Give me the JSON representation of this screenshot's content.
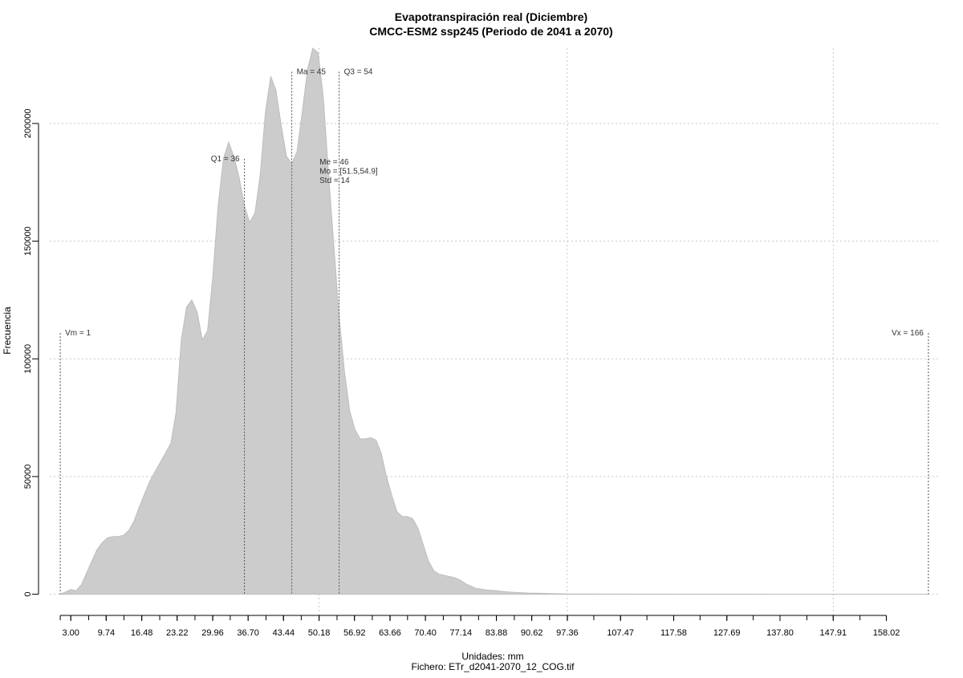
{
  "chart_data": {
    "type": "area",
    "title": "Evapotranspiración real (Diciembre)",
    "subtitle": "CMCC-ESM2 ssp245 (Periodo de 2041 a 2070)",
    "xlabel": "Unidades: mm",
    "file_label": "Fichero: ETr_d2041-2070_12_COG.tif",
    "ylabel": "Frecuencia",
    "xlim": [
      -1,
      168
    ],
    "ylim": [
      -9000,
      232000
    ],
    "grid": true,
    "fill_color": "#cccccc",
    "x_ticks": [
      3.0,
      9.74,
      16.48,
      23.22,
      29.96,
      36.7,
      43.44,
      50.18,
      56.92,
      63.66,
      70.4,
      77.14,
      83.88,
      90.62,
      97.36,
      107.47,
      117.58,
      127.69,
      137.8,
      147.91,
      158.02
    ],
    "x_tick_labels": [
      "3.00",
      "9.74",
      "16.48",
      "23.22",
      "29.96",
      "36.70",
      "43.44",
      "50.18",
      "56.92",
      "63.66",
      "70.40",
      "77.14",
      "83.88",
      "90.62",
      "97.36",
      "107.47",
      "117.58",
      "127.69",
      "137.80",
      "147.91",
      "158.02"
    ],
    "x_minor_ticks": [
      1,
      3,
      6.4,
      9.7,
      13.1,
      16.5,
      19.9,
      23.2,
      26.6,
      30.0,
      33.3,
      36.7,
      40.1,
      43.4,
      46.8,
      50.2,
      53.6,
      56.9,
      60.3,
      63.7,
      67.0,
      70.4,
      73.8,
      77.1,
      80.5,
      83.9,
      87.3,
      90.6,
      94.0,
      97.4,
      102.4,
      107.5,
      112.5,
      117.6,
      122.6,
      127.7,
      132.7,
      137.8,
      142.9,
      147.9,
      153.0,
      158.0
    ],
    "y_ticks": [
      0,
      50000,
      100000,
      150000,
      200000
    ],
    "y_tick_labels": [
      "0",
      "50000",
      "100000",
      "150000",
      "200000"
    ],
    "x_grid": [
      50.18,
      97.36,
      147.91
    ],
    "y_grid": [
      0,
      50000,
      100000,
      150000,
      200000
    ],
    "series": [
      {
        "x": [
          1,
          2,
          3,
          4,
          5,
          6,
          7,
          8,
          9,
          10,
          11,
          12,
          13,
          14,
          15,
          16,
          17,
          18,
          19,
          20,
          21,
          22,
          23,
          24,
          25,
          26,
          27,
          28,
          29,
          30,
          31,
          32,
          33,
          34,
          35,
          36,
          37,
          38,
          39,
          40,
          41,
          42,
          43,
          44,
          45,
          46,
          47,
          48,
          49,
          50,
          51,
          52,
          53,
          54,
          55,
          56,
          57,
          58,
          59,
          60,
          61,
          62,
          63,
          64,
          65,
          66,
          67,
          68,
          69,
          70,
          71,
          72,
          73,
          74,
          75,
          76,
          77,
          78,
          79,
          80,
          82,
          84,
          86,
          88,
          90,
          92,
          94,
          96,
          98,
          100,
          105,
          110,
          120,
          130,
          140,
          150,
          160,
          166
        ],
        "y": [
          0,
          1000,
          2000,
          1500,
          4000,
          9000,
          14000,
          19000,
          22000,
          24000,
          24500,
          24500,
          25000,
          27000,
          31000,
          37000,
          42500,
          48000,
          52000,
          56000,
          60000,
          64000,
          77000,
          108000,
          122000,
          125000,
          120000,
          108000,
          112000,
          135000,
          165000,
          185000,
          192000,
          186000,
          177000,
          165000,
          158000,
          162000,
          178000,
          205000,
          220000,
          214000,
          199000,
          186000,
          183000,
          188000,
          205000,
          223000,
          232000,
          230000,
          211000,
          178000,
          148000,
          118000,
          95000,
          78000,
          70000,
          66000,
          66000,
          66500,
          65500,
          60000,
          50000,
          42000,
          35000,
          33000,
          33000,
          32000,
          28000,
          21000,
          14000,
          10000,
          8500,
          8000,
          7500,
          7000,
          6000,
          4500,
          3500,
          2500,
          1800,
          1500,
          1000,
          700,
          500,
          400,
          300,
          200,
          150,
          100,
          80,
          60,
          40,
          20,
          10,
          5,
          2,
          0
        ]
      }
    ],
    "vlines": [
      {
        "x": 1,
        "y_top": 111000,
        "label": "Vm = 1",
        "anchor": "start"
      },
      {
        "x": 36,
        "y_top": 185000,
        "label": "Q1 = 36",
        "anchor": "end"
      },
      {
        "x": 45,
        "y_top": 222000,
        "label": "Ma = 45",
        "anchor": "start"
      },
      {
        "x": 54,
        "y_top": 222000,
        "label": "Q3 = 54",
        "anchor": "start"
      },
      {
        "x": 166,
        "y_top": 111000,
        "label": "Vx = 166",
        "anchor": "end"
      }
    ],
    "stats_block": [
      "Me = 46",
      "Mo = [51.5,54.9]",
      "Std = 14"
    ]
  }
}
